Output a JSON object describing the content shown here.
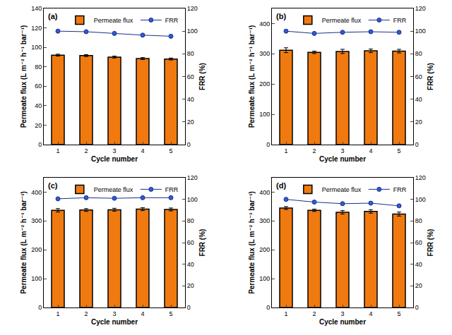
{
  "chart_data": [
    {
      "type": "bar",
      "title": "(a)",
      "x_label": "Cycle number",
      "y_label": "Permeate flux (L m⁻² h⁻¹ bar⁻¹)",
      "y2_label": "FRR (%)",
      "x": [
        1,
        2,
        3,
        4,
        5
      ],
      "xlim": [
        0.5,
        5.5
      ],
      "xticks": [
        1,
        2,
        3,
        4,
        5
      ],
      "ylim": [
        0,
        140
      ],
      "yticks": [
        0,
        20,
        40,
        60,
        80,
        100,
        120,
        140
      ],
      "y2lim": [
        0,
        120
      ],
      "y2ticks": [
        0,
        20,
        40,
        60,
        80,
        100,
        120
      ],
      "legend": "upper right",
      "grid": false,
      "series": [
        {
          "name": "Permeate flux",
          "type": "bar",
          "color": "#f07a10",
          "values": [
            92,
            91.5,
            90,
            88.5,
            88
          ],
          "errors": [
            1,
            1,
            1,
            1,
            1
          ]
        },
        {
          "name": "FRR",
          "type": "line",
          "axis": "y2",
          "color": "#2f5bd3",
          "marker": "circle",
          "line_style": "solid",
          "values": [
            100,
            99.5,
            98,
            96.5,
            95.5
          ]
        }
      ]
    },
    {
      "type": "bar",
      "title": "(b)",
      "x_label": "Cycle number",
      "y_label": "Permeate flux (L m⁻² h⁻¹ bar⁻¹)",
      "y2_label": "FRR (%)",
      "x": [
        1,
        2,
        3,
        4,
        5
      ],
      "xlim": [
        0.5,
        5.5
      ],
      "xticks": [
        1,
        2,
        3,
        4,
        5
      ],
      "ylim": [
        0,
        450
      ],
      "yticks": [
        0,
        100,
        200,
        300,
        400
      ],
      "y2lim": [
        0,
        120
      ],
      "y2ticks": [
        0,
        20,
        40,
        60,
        80,
        100,
        120
      ],
      "legend": "upper right",
      "grid": false,
      "series": [
        {
          "name": "Permeate flux",
          "type": "bar",
          "color": "#f07a10",
          "values": [
            312,
            305,
            308,
            310,
            309
          ],
          "errors": [
            8,
            4,
            7,
            6,
            6
          ]
        },
        {
          "name": "FRR",
          "type": "line",
          "axis": "y2",
          "color": "#2f5bd3",
          "marker": "circle",
          "line_style": "solid",
          "values": [
            100,
            98,
            99,
            99.5,
            99
          ]
        }
      ]
    },
    {
      "type": "bar",
      "title": "(c)",
      "x_label": "Cycle number",
      "y_label": "Permeate flux (L m⁻² h⁻¹ bar⁻¹)",
      "y2_label": "FRR (%)",
      "x": [
        1,
        2,
        3,
        4,
        5
      ],
      "xlim": [
        0.5,
        5.5
      ],
      "xticks": [
        1,
        2,
        3,
        4,
        5
      ],
      "ylim": [
        0,
        450
      ],
      "yticks": [
        0,
        100,
        200,
        300,
        400
      ],
      "y2lim": [
        0,
        120
      ],
      "y2ticks": [
        0,
        20,
        40,
        60,
        80,
        100,
        120
      ],
      "legend": "upper right",
      "grid": false,
      "series": [
        {
          "name": "Permeate flux",
          "type": "bar",
          "color": "#f07a10",
          "values": [
            337,
            338,
            339,
            341,
            340
          ],
          "errors": [
            6,
            5,
            5,
            5,
            5
          ]
        },
        {
          "name": "FRR",
          "type": "line",
          "axis": "y2",
          "color": "#2f5bd3",
          "marker": "circle",
          "line_style": "solid",
          "values": [
            100.5,
            101.5,
            101,
            101.5,
            101.5
          ]
        }
      ]
    },
    {
      "type": "bar",
      "title": "(d)",
      "x_label": "Cycle number",
      "y_label": "Permeate flux (L m⁻² h⁻¹ bar⁻¹)",
      "y2_label": "FRR (%)",
      "x": [
        1,
        2,
        3,
        4,
        5
      ],
      "xlim": [
        0.5,
        5.5
      ],
      "xticks": [
        1,
        2,
        3,
        4,
        5
      ],
      "ylim": [
        0,
        450
      ],
      "yticks": [
        0,
        100,
        200,
        300,
        400
      ],
      "y2lim": [
        0,
        120
      ],
      "y2ticks": [
        0,
        20,
        40,
        60,
        80,
        100,
        120
      ],
      "legend": "upper right",
      "grid": false,
      "series": [
        {
          "name": "Permeate flux",
          "type": "bar",
          "color": "#f07a10",
          "values": [
            345,
            337,
            330,
            333,
            324
          ],
          "errors": [
            5,
            4,
            6,
            6,
            7
          ]
        },
        {
          "name": "FRR",
          "type": "line",
          "axis": "y2",
          "color": "#2f5bd3",
          "marker": "circle",
          "line_style": "solid",
          "values": [
            100,
            97.5,
            96,
            96.5,
            94
          ]
        }
      ]
    }
  ]
}
